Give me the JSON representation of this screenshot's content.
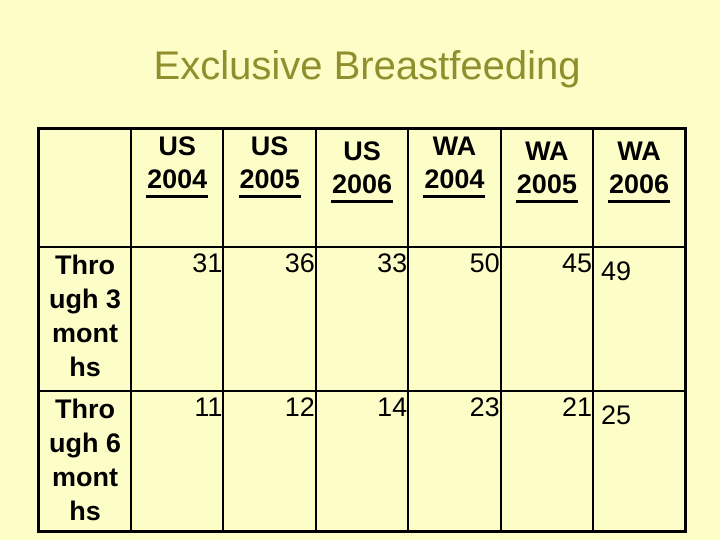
{
  "slide": {
    "title": "Exclusive Breastfeeding",
    "background_color": "#FDFDC8",
    "title_color": "#8F8F2D",
    "border_color": "#000000"
  },
  "table": {
    "columns": [
      {
        "region": "US",
        "year": "2004"
      },
      {
        "region": "US",
        "year": "2005"
      },
      {
        "region": "US",
        "year": "2006"
      },
      {
        "region": "WA",
        "year": "2004"
      },
      {
        "region": "WA",
        "year": "2005"
      },
      {
        "region": "WA",
        "year": "2006"
      }
    ],
    "rows": [
      {
        "label": "Through 3 months",
        "label_lines": [
          "Thro",
          "ugh 3",
          "mont",
          "hs"
        ],
        "values": [
          31,
          36,
          33,
          50,
          45,
          49
        ]
      },
      {
        "label": "Through 6 months",
        "label_lines": [
          "Thro",
          "ugh 6",
          "mont",
          "hs"
        ],
        "values": [
          11,
          12,
          14,
          23,
          21,
          25
        ]
      }
    ]
  },
  "chart_data": {
    "type": "table",
    "title": "Exclusive Breastfeeding",
    "categories": [
      "US 2004",
      "US 2005",
      "US 2006",
      "WA 2004",
      "WA 2005",
      "WA 2006"
    ],
    "series": [
      {
        "name": "Through 3 months",
        "values": [
          31,
          36,
          33,
          50,
          45,
          49
        ]
      },
      {
        "name": "Through 6 months",
        "values": [
          11,
          12,
          14,
          23,
          21,
          25
        ]
      }
    ]
  }
}
